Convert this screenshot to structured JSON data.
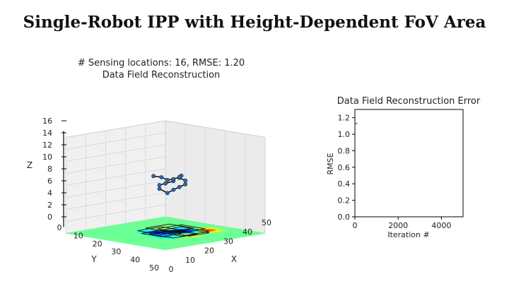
{
  "title": "Single-Robot IPP with Height-Dependent FoV Area",
  "chart_data": [
    {
      "type": "scatter3d",
      "title_line1": "# Sensing locations: 16, RMSE: 1.20",
      "title_line2": "Data Field Reconstruction",
      "xlabel": "X",
      "ylabel": "Y",
      "zlabel": "Z",
      "xlim": [
        0,
        50
      ],
      "ylim": [
        0,
        50
      ],
      "zlim": [
        0,
        16
      ],
      "xticks": [
        0,
        10,
        20,
        30,
        40,
        50
      ],
      "yticks": [
        0,
        10,
        20,
        30,
        40,
        50
      ],
      "zticks": [
        0,
        2,
        4,
        6,
        8,
        10,
        12,
        14,
        16
      ],
      "path": [
        {
          "x": 26,
          "y": 22,
          "z": 8.6
        },
        {
          "x": 24,
          "y": 24,
          "z": 8.2
        },
        {
          "x": 23,
          "y": 26,
          "z": 8.0
        },
        {
          "x": 25,
          "y": 28,
          "z": 7.6
        },
        {
          "x": 28,
          "y": 27,
          "z": 7.0
        },
        {
          "x": 30,
          "y": 26,
          "z": 7.6
        },
        {
          "x": 31,
          "y": 24,
          "z": 8.0
        },
        {
          "x": 32,
          "y": 22,
          "z": 8.4
        },
        {
          "x": 30,
          "y": 20,
          "z": 8.8
        },
        {
          "x": 28,
          "y": 21,
          "z": 9.2
        },
        {
          "x": 27,
          "y": 19,
          "z": 9.4
        },
        {
          "x": 25,
          "y": 18,
          "z": 9.0
        },
        {
          "x": 23,
          "y": 19,
          "z": 8.6
        },
        {
          "x": 21,
          "y": 20,
          "z": 8.4
        },
        {
          "x": 19,
          "y": 21,
          "z": 8.8
        },
        {
          "x": 17,
          "y": 23,
          "z": 9.0
        }
      ]
    },
    {
      "type": "line",
      "title": "Data Field Reconstruction Error",
      "xlabel": "Iteration #",
      "ylabel": "RMSE",
      "xlim": [
        0,
        5000
      ],
      "ylim": [
        0,
        1.3
      ],
      "xticks": [
        0,
        2000,
        4000
      ],
      "yticks": [
        0.0,
        0.2,
        0.4,
        0.6,
        0.8,
        1.0,
        1.2
      ],
      "series": [
        {
          "x": [
            0,
            120
          ],
          "y": [
            1.13,
            1.13
          ],
          "color": "#1f77b4"
        }
      ]
    }
  ]
}
